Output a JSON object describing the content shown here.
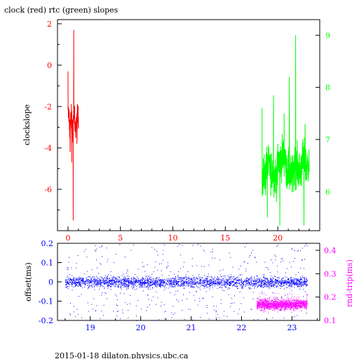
{
  "title": "clock (red) rtc (green) slopes",
  "footer": "2015-01-18 dilaton.physics.ubc.ca",
  "colors": {
    "clock": "#ff0000",
    "rtc": "#00ff00",
    "offset": "#0000ff",
    "rndtrip": "#ff00ff",
    "axis": "#000000"
  },
  "chart_data": [
    {
      "type": "line",
      "title": "clock (red) rtc (green) slopes",
      "ylabel": "clockslope",
      "y2label": "",
      "xlim": [
        -1,
        24
      ],
      "ylim": [
        -8,
        2.2
      ],
      "y2lim": [
        5.25,
        9.3
      ],
      "x_ticks": [
        0,
        5,
        10,
        15,
        20
      ],
      "y_ticks": [
        2,
        0,
        -2,
        -4,
        -6
      ],
      "y2_ticks": [
        9,
        8,
        7,
        6
      ],
      "series": [
        {
          "name": "clock (red)",
          "axis": "left",
          "color": "#ff0000",
          "x_start": 0.0,
          "x_end": 1.0,
          "n": 90,
          "base": [
            -2.4,
            -3.0,
            -2.6,
            -2.9,
            -2.5,
            -3.1,
            -2.8,
            -2.6
          ],
          "spread": 0.5,
          "spikes": [
            [
              0.55,
              1.7
            ],
            [
              0.5,
              -7.5
            ],
            [
              0.0,
              -0.3
            ],
            [
              0.35,
              -4.7
            ],
            [
              0.2,
              -4.2
            ],
            [
              0.85,
              -3.8
            ],
            [
              0.95,
              -2.0
            ]
          ]
        },
        {
          "name": "rtc (green)",
          "axis": "right",
          "color": "#00ff00",
          "x_start": 18.5,
          "x_end": 23.0,
          "n": 420,
          "base": [
            6.3,
            6.5,
            6.4,
            6.3,
            6.6,
            6.7,
            6.4,
            6.3,
            6.5,
            6.4,
            6.6,
            6.5
          ],
          "spread": 0.3,
          "spikes": [
            [
              21.7,
              9.0
            ],
            [
              18.5,
              7.6
            ],
            [
              19.6,
              7.85
            ],
            [
              21.1,
              8.2
            ],
            [
              20.6,
              7.5
            ],
            [
              20.2,
              5.35
            ],
            [
              22.5,
              5.35
            ],
            [
              19.0,
              5.5
            ],
            [
              22.6,
              7.3
            ]
          ]
        }
      ]
    },
    {
      "type": "scatter",
      "ylabel": "offset(ms)",
      "y2label": "rnd-trip(ms)",
      "xlim": [
        18.35,
        23.55
      ],
      "ylim": [
        -0.2,
        0.2
      ],
      "y2lim": [
        0.1,
        0.43
      ],
      "x_ticks": [
        19,
        20,
        21,
        22,
        23
      ],
      "x_tick_labels": [
        "19",
        "20",
        "21",
        "22",
        "23"
      ],
      "y_ticks": [
        0.2,
        0.1,
        0,
        -0.1,
        -0.2
      ],
      "y_tick_labels": [
        "0.2",
        "0.1",
        "0",
        "-0.1",
        "-0.2"
      ],
      "y2_ticks": [
        0.4,
        0.3,
        0.2,
        0.1
      ],
      "y2_tick_labels": [
        "0.4",
        "0.3",
        "0.2",
        "0.1"
      ],
      "series": [
        {
          "name": "offset",
          "axis": "left",
          "color": "#0000ff",
          "x_range": [
            18.5,
            23.3
          ],
          "center": 0.0,
          "band": 0.03,
          "outlier_range": [
            -0.2,
            0.2
          ]
        },
        {
          "name": "rnd-trip",
          "axis": "right",
          "color": "#ff00ff",
          "x_range": [
            22.3,
            23.3
          ],
          "center": 0.17,
          "band": 0.025,
          "outlier_range": [
            0.13,
            0.22
          ]
        }
      ]
    }
  ],
  "labels": {
    "top_ylabel": "clockslope",
    "bottom_ylabel": "offset(ms)",
    "bottom_y2label": "rnd-trip(ms)",
    "top_x_ticks": [
      "0",
      "5",
      "10",
      "15",
      "20"
    ],
    "top_y_ticks": [
      "2",
      "0",
      "-2",
      "-4",
      "-6"
    ],
    "top_y2_ticks": [
      "9",
      "8",
      "7",
      "6"
    ]
  }
}
